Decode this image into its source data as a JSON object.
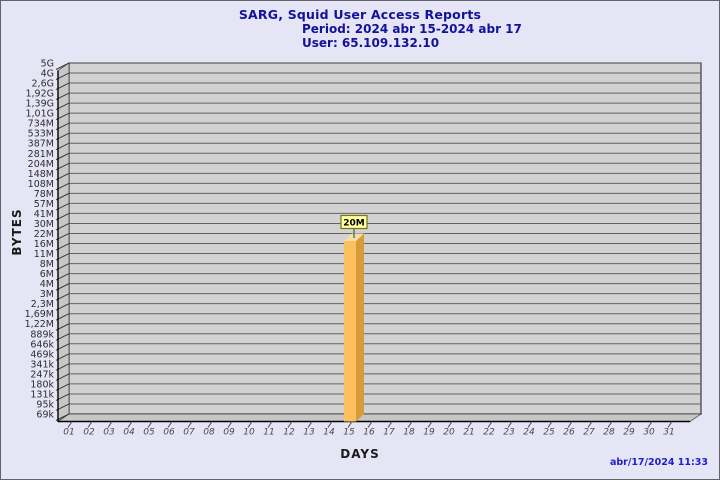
{
  "window": {
    "background": "#E5E5F6",
    "border_color": "#62626E"
  },
  "footer": {
    "timestamp": "abr/17/2024 11:33",
    "timestamp_color": "#2020C8"
  },
  "chart_data": {
    "type": "bar",
    "title": "SARG, Squid User Access Reports",
    "subtitle_period": "Period: 2024 abr 15-2024 abr 17",
    "subtitle_user": "User: 65.109.132.10",
    "xlabel": "DAYS",
    "ylabel": "BYTES",
    "x_tick_labels": [
      "01",
      "02",
      "03",
      "04",
      "05",
      "06",
      "07",
      "08",
      "09",
      "10",
      "11",
      "12",
      "13",
      "14",
      "15",
      "16",
      "17",
      "18",
      "19",
      "20",
      "21",
      "22",
      "23",
      "24",
      "25",
      "26",
      "27",
      "28",
      "29",
      "30",
      "31"
    ],
    "y_tick_labels": [
      "5G",
      "4G",
      "2,6G",
      "1,92G",
      "1,39G",
      "1,01G",
      "734M",
      "533M",
      "387M",
      "281M",
      "204M",
      "148M",
      "108M",
      "78M",
      "57M",
      "41M",
      "30M",
      "22M",
      "16M",
      "11M",
      "8M",
      "6M",
      "4M",
      "3M",
      "2,3M",
      "1,69M",
      "1,22M",
      "889k",
      "646k",
      "469k",
      "341k",
      "247k",
      "180k",
      "131k",
      "95k",
      "69k"
    ],
    "y_axis_scale": "logarithmic",
    "grid": "horizontal",
    "legend": "none",
    "series": [
      {
        "name": "bytes-per-day",
        "points": [
          {
            "x": "15",
            "value_label": "20M",
            "value_bytes": 20000000
          }
        ]
      }
    ],
    "palette": {
      "plot_bg": "#D2D2D2",
      "grid_line": "#636363",
      "wall_fill": "#C7C7C7",
      "wall_edge": "#3A3A3A",
      "axis_line": "#000000",
      "y_tick_color": "#2E2E2E",
      "x_tick_color": "#4A4A4A",
      "bar_front": "#FCC05E",
      "bar_side": "#D79B39",
      "bar_top": "#F1E0A8",
      "value_label_bg": "#FFFF9E",
      "value_label_border": "#74741C",
      "value_label_text": "#000000",
      "title_color": "#12129B"
    }
  }
}
